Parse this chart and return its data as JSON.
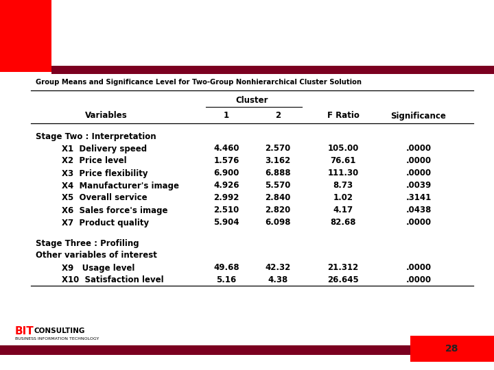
{
  "title": "Group Means and Significance Level for Two-Group Nonhierarchical Cluster Solution",
  "bg_color": "#ffffff",
  "dark_red": "#7B0020",
  "red_accent": "#FF0000",
  "cluster_header": "Cluster",
  "stage_two_label": "Stage Two : Interpretation",
  "stage_three_label": "Stage Three : Profiling",
  "other_vars_label": "Other variables of interest",
  "rows": [
    {
      "label": "X1  Delivery speed",
      "c1": "4.460",
      "c2": "2.570",
      "f": "105.00",
      "sig": ".0000"
    },
    {
      "label": "X2  Price level",
      "c1": "1.576",
      "c2": "3.162",
      "f": "76.61",
      "sig": ".0000"
    },
    {
      "label": "X3  Price flexibility",
      "c1": "6.900",
      "c2": "6.888",
      "f": "111.30",
      "sig": ".0000"
    },
    {
      "label": "X4  Manufacturer's image",
      "c1": "4.926",
      "c2": "5.570",
      "f": "8.73",
      "sig": ".0039"
    },
    {
      "label": "X5  Overall service",
      "c1": "2.992",
      "c2": "2.840",
      "f": "1.02",
      "sig": ".3141"
    },
    {
      "label": "X6  Sales force's image",
      "c1": "2.510",
      "c2": "2.820",
      "f": "4.17",
      "sig": ".0438"
    },
    {
      "label": "X7  Product quality",
      "c1": "5.904",
      "c2": "6.098",
      "f": "82.68",
      "sig": ".0000"
    }
  ],
  "other_rows": [
    {
      "label": "X9   Usage level",
      "c1": "49.68",
      "c2": "42.32",
      "f": "21.312",
      "sig": ".0000"
    },
    {
      "label": "X10  Satisfaction level",
      "c1": "5.16",
      "c2": "4.38",
      "f": "26.645",
      "sig": ".0000"
    }
  ],
  "page_number": "28",
  "logo_text_bit": "BIT",
  "logo_text_rest": "CONSULTING",
  "logo_subtext": "BUSINESS INFORMATION TECHNOLOGY"
}
